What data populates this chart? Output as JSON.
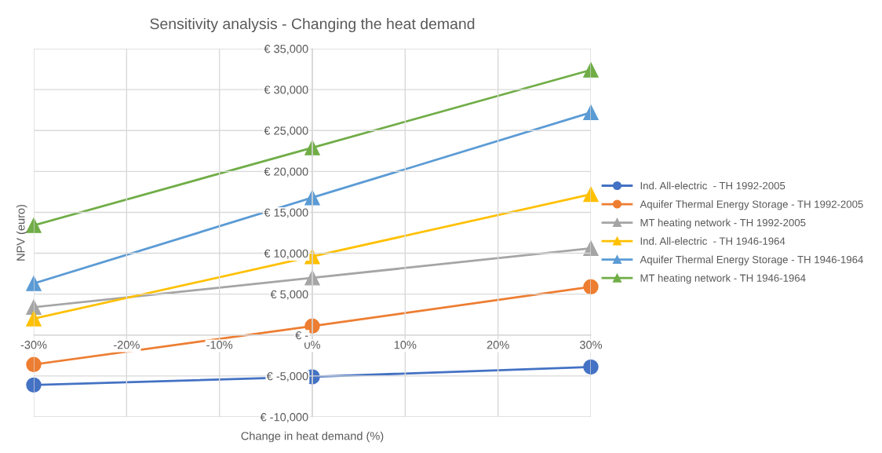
{
  "chart_data": {
    "type": "line",
    "title": "Sensitivity analysis - Changing the heat demand",
    "xlabel": "Change in heat demand (%)",
    "ylabel": "NPV (euro)",
    "x": [
      -30,
      0,
      30
    ],
    "series": [
      {
        "name": "Ind. All-electric  - TH 1992-2005",
        "color": "#4472c4",
        "marker": "circle",
        "values": [
          -6100,
          -5100,
          -3900
        ]
      },
      {
        "name": "Aquifer Thermal Energy Storage - TH 1992-2005",
        "color": "#ed7d31",
        "marker": "circle",
        "values": [
          -3600,
          1100,
          5900
        ]
      },
      {
        "name": "MT heating network - TH 1992-2005",
        "color": "#a5a5a5",
        "marker": "triangle",
        "values": [
          3400,
          7000,
          10600
        ]
      },
      {
        "name": "Ind. All-electric  - TH 1946-1964",
        "color": "#ffc000",
        "marker": "triangle",
        "values": [
          2000,
          9600,
          17200
        ]
      },
      {
        "name": "Aquifer Thermal Energy Storage - TH 1946-1964",
        "color": "#5b9bd5",
        "marker": "triangle",
        "values": [
          6300,
          16800,
          27200
        ]
      },
      {
        "name": "MT heating network - TH 1946-1964",
        "color": "#70ad47",
        "marker": "triangle",
        "values": [
          13400,
          22900,
          32400
        ]
      }
    ],
    "xlim": [
      -30,
      30
    ],
    "xticks": [
      {
        "value": -30,
        "label": "-30%"
      },
      {
        "value": -20,
        "label": "-20%"
      },
      {
        "value": -10,
        "label": "-10%"
      },
      {
        "value": 0,
        "label": "0%"
      },
      {
        "value": 10,
        "label": "10%"
      },
      {
        "value": 20,
        "label": "20%"
      },
      {
        "value": 30,
        "label": "30%"
      }
    ],
    "ylim": [
      -10000,
      35000
    ],
    "yticks": [
      {
        "value": -10000,
        "label": "€ -10,000"
      },
      {
        "value": -5000,
        "label": "€ -5,000"
      },
      {
        "value": 0,
        "label": "€ -"
      },
      {
        "value": 5000,
        "label": "€ 5,000"
      },
      {
        "value": 10000,
        "label": "€ 10,000"
      },
      {
        "value": 15000,
        "label": "€ 15,000"
      },
      {
        "value": 20000,
        "label": "€ 20,000"
      },
      {
        "value": 25000,
        "label": "€ 25,000"
      },
      {
        "value": 30000,
        "label": "€ 30,000"
      },
      {
        "value": 35000,
        "label": "€ 35,000"
      }
    ],
    "grid": true,
    "legend": "right"
  }
}
